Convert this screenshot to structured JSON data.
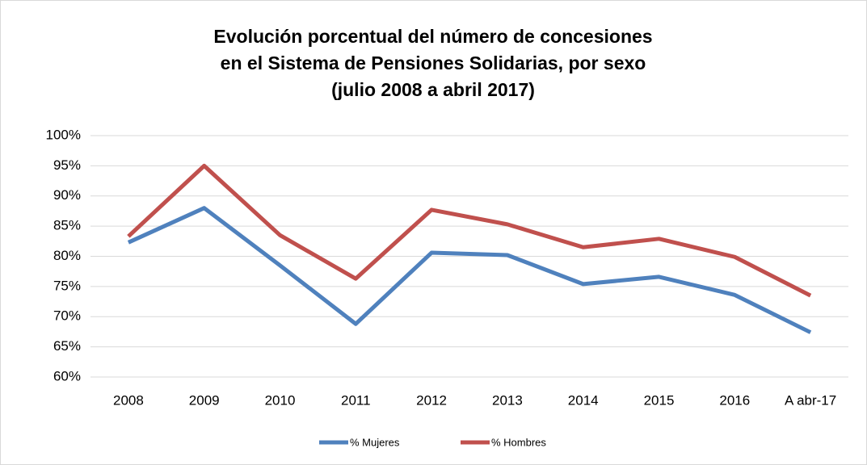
{
  "chart_data": {
    "type": "line",
    "title": [
      "Evolución porcentual del número de concesiones",
      "en el Sistema de Pensiones Solidarias, por sexo",
      "(julio 2008 a abril 2017)"
    ],
    "categories": [
      "2008",
      "2009",
      "2010",
      "2011",
      "2012",
      "2013",
      "2014",
      "2015",
      "2016",
      "A abr-17"
    ],
    "series": [
      {
        "name": "% Mujeres",
        "color": "#4f81bd",
        "values": [
          82.3,
          88,
          78.5,
          68.8,
          80.6,
          80.2,
          75.4,
          76.6,
          73.6,
          67.4
        ]
      },
      {
        "name": "% Hombres",
        "color": "#c0504d",
        "values": [
          83.3,
          95,
          83.5,
          76.3,
          87.7,
          85.3,
          81.5,
          82.9,
          79.9,
          73.5
        ]
      }
    ],
    "ylim": [
      60,
      100
    ],
    "yticks": [
      {
        "value": 60,
        "label": "60%"
      },
      {
        "value": 65,
        "label": "65%"
      },
      {
        "value": 70,
        "label": "70%"
      },
      {
        "value": 75,
        "label": "75%"
      },
      {
        "value": 80,
        "label": "80%"
      },
      {
        "value": 85,
        "label": "85%"
      },
      {
        "value": 90,
        "label": "90%"
      },
      {
        "value": 95,
        "label": "95%"
      },
      {
        "value": 100,
        "label": "100%"
      }
    ],
    "grid": true,
    "legend": "bottom"
  }
}
